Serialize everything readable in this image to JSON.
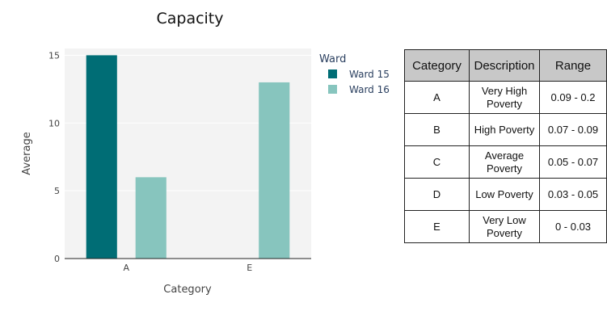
{
  "chart_data": {
    "type": "bar",
    "title": "Capacity",
    "xlabel": "Category",
    "ylabel": "Average",
    "categories": [
      "A",
      "E"
    ],
    "ylim": [
      0,
      15.5
    ],
    "yticks": [
      0,
      5,
      10,
      15
    ],
    "grid": true,
    "legend": {
      "title": "Ward",
      "placement": "top-right"
    },
    "series": [
      {
        "name": "Ward 15",
        "color": "#006d75",
        "values": [
          15,
          null
        ]
      },
      {
        "name": "Ward 16",
        "color": "#87c5be",
        "values": [
          6,
          13
        ]
      }
    ]
  },
  "table": {
    "headers": [
      "Category",
      "Description",
      "Range"
    ],
    "rows": [
      [
        "A",
        "Very High Poverty",
        "0.09 - 0.2"
      ],
      [
        "B",
        "High Poverty",
        "0.07 - 0.09"
      ],
      [
        "C",
        "Average Poverty",
        "0.05 - 0.07"
      ],
      [
        "D",
        "Low Poverty",
        "0.03 - 0.05"
      ],
      [
        "E",
        "Very Low Poverty",
        "0 - 0.03"
      ]
    ]
  }
}
